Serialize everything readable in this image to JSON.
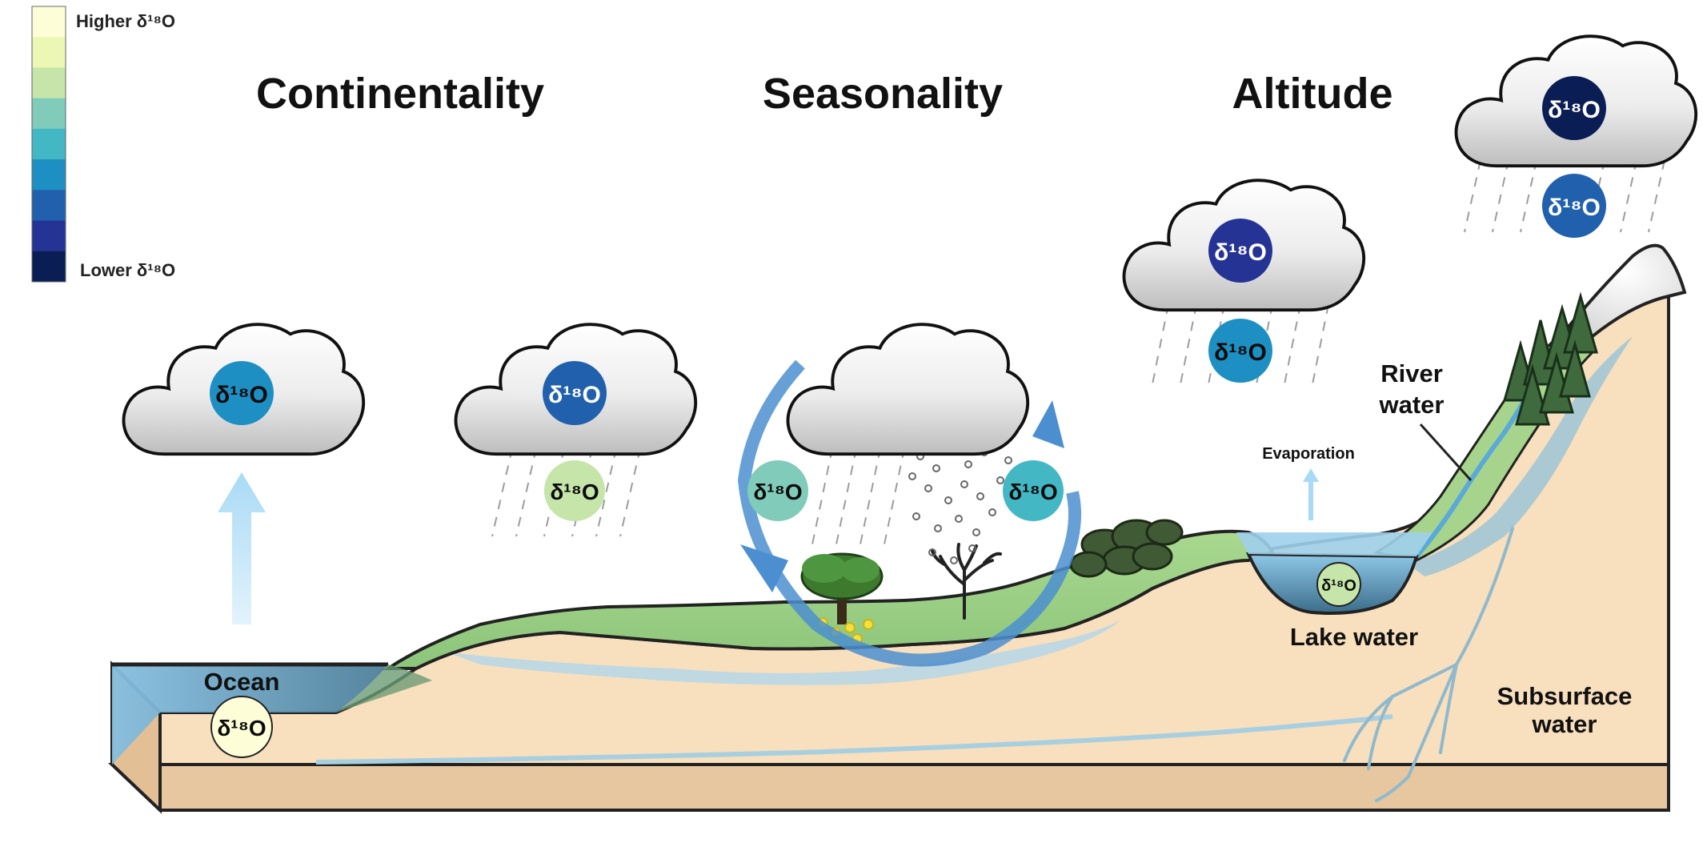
{
  "legend": {
    "higher_label": "Higher δ¹⁸O",
    "lower_label": "Lower δ¹⁸O",
    "scale_colors": [
      "#fdfed8",
      "#edf7b4",
      "#c5e5a9",
      "#80cbba",
      "#43b7c4",
      "#1d8fc3",
      "#2160ad",
      "#253494",
      "#0b1d55"
    ]
  },
  "headings": {
    "continentality": "Continentality",
    "seasonality": "Seasonality",
    "altitude": "Altitude"
  },
  "labels": {
    "ocean": "Ocean",
    "evaporation": "Evaporation",
    "lake_water": "Lake water",
    "river_water_line1": "River",
    "river_water_line2": "water",
    "subsurface_line1": "Subsurface",
    "subsurface_line2": "water"
  },
  "isotope_text": "δ¹⁸O",
  "colors": {
    "ocean_marker": "#fdfed8",
    "coastal_cloud": "#1d8fc3",
    "inland_cloud": "#2160ad",
    "inland_rain": "#c5e5a9",
    "summer_precip": "#80cbba",
    "winter_precip": "#43b7c4",
    "mid_altitude_cloud": "#253494",
    "mid_altitude_rain": "#1d8fc3",
    "high_altitude_cloud": "#0b1d55",
    "high_altitude_rain": "#2160ad",
    "lake_marker": "#c5e5a9",
    "ground": "#f8dfbd",
    "vegetation": "#9fd083",
    "water": "#8fc6e2",
    "arrow": "#4b8fd0"
  }
}
